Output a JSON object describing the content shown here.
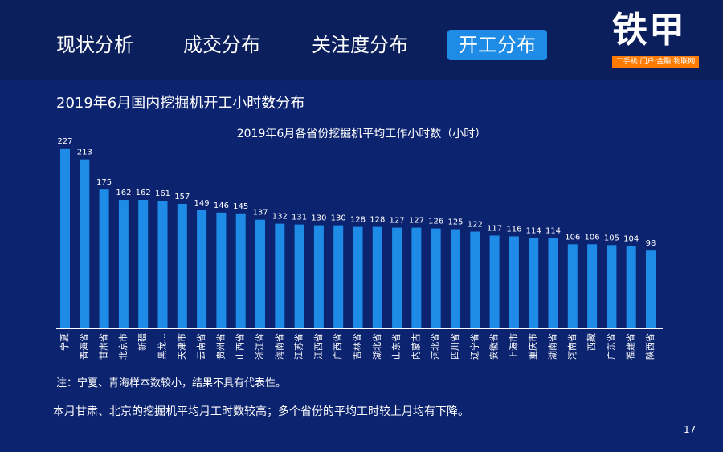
{
  "nav": {
    "tabs": [
      {
        "label": "现状分析"
      },
      {
        "label": "成交分布"
      },
      {
        "label": "关注度分布"
      },
      {
        "label": "开工分布"
      }
    ],
    "active_index": 3
  },
  "logo": {
    "name": "铁甲",
    "tagline": "二手机·门户·金融·物联网"
  },
  "subtitle": "2019年6月国内挖掘机开工小时数分布",
  "chart_data": {
    "type": "bar",
    "title": "2019年6月各省份挖掘机平均工作小时数（小时）",
    "categories": [
      "宁夏",
      "青海省",
      "甘肃省",
      "北京市",
      "新疆",
      "黑龙...",
      "天津市",
      "云南省",
      "贵州省",
      "山西省",
      "浙江省",
      "海南省",
      "江苏省",
      "江西省",
      "广西省",
      "吉林省",
      "湖北省",
      "山东省",
      "内蒙古",
      "河北省",
      "四川省",
      "辽宁省",
      "安徽省",
      "上海市",
      "重庆市",
      "湖南省",
      "河南省",
      "西藏",
      "广东省",
      "福建省",
      "陕西省"
    ],
    "values": [
      227,
      213,
      175,
      162,
      162,
      161,
      157,
      149,
      146,
      145,
      137,
      132,
      131,
      130,
      130,
      128,
      128,
      127,
      127,
      126,
      125,
      122,
      117,
      116,
      114,
      114,
      106,
      106,
      105,
      104,
      98
    ],
    "ylim": [
      0,
      240
    ],
    "grid": false,
    "legend": "none",
    "bar_color": "#1e8ce6",
    "axis_color": "#ffffff"
  },
  "note": "注：宁夏、青海样本数较小，结果不具有代表性。",
  "summary": "本月甘肃、北京的挖掘机平均月工时数较高；多个省份的平均工时较上月均有下降。",
  "page_number": "17",
  "colors": {
    "background": "#0c2370",
    "header": "#0b1f5c",
    "accent": "#1e8ce6",
    "logo_bar": "#ff7a00"
  }
}
